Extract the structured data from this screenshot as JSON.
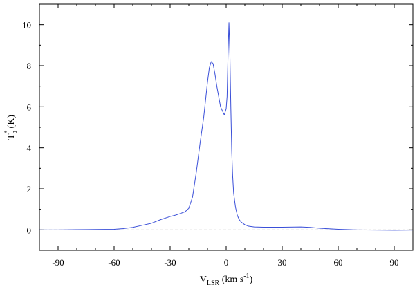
{
  "chart_data": {
    "type": "line",
    "title": "",
    "xlabel": {
      "main": "V",
      "sub": "LSR",
      "rest": " (km s",
      "sup": "-1",
      "end": ")"
    },
    "ylabel": {
      "main": "T",
      "sup": "*",
      "sub": "a",
      "rest": " (K)"
    },
    "xlim": [
      -100,
      100
    ],
    "ylim": [
      -1,
      11
    ],
    "xticks": [
      -90,
      -60,
      -30,
      0,
      30,
      60,
      90
    ],
    "yticks": [
      0,
      2,
      4,
      6,
      8,
      10
    ],
    "grid": false,
    "baseline": {
      "y": 0,
      "style": "dashed",
      "color": "#9a9a9a"
    },
    "series": [
      {
        "color": "#3a4fd8",
        "x": [
          -100,
          -90,
          -80,
          -70,
          -60,
          -55,
          -50,
          -45,
          -40,
          -35,
          -30,
          -27,
          -25,
          -22,
          -20,
          -18,
          -16,
          -14,
          -12,
          -10,
          -9,
          -8,
          -7,
          -6,
          -5,
          -4,
          -3,
          -2,
          -1,
          0,
          0.5,
          1,
          1.5,
          2,
          2.5,
          3,
          3.5,
          4,
          5,
          6,
          7,
          8,
          10,
          12,
          15,
          20,
          25,
          30,
          40,
          45,
          50,
          60,
          70,
          80,
          90,
          100
        ],
        "y": [
          0.0,
          0.0,
          0.01,
          0.02,
          0.03,
          0.06,
          0.12,
          0.22,
          0.32,
          0.5,
          0.65,
          0.72,
          0.78,
          0.88,
          1.05,
          1.6,
          2.8,
          4.2,
          5.5,
          7.2,
          7.9,
          8.2,
          8.1,
          7.6,
          7.0,
          6.5,
          6.0,
          5.8,
          5.6,
          5.9,
          6.5,
          8.5,
          10.1,
          8.6,
          6.0,
          3.8,
          2.6,
          1.8,
          1.1,
          0.7,
          0.5,
          0.38,
          0.25,
          0.18,
          0.14,
          0.13,
          0.13,
          0.13,
          0.14,
          0.12,
          0.08,
          0.03,
          0.0,
          -0.01,
          -0.02,
          -0.01
        ]
      }
    ]
  }
}
